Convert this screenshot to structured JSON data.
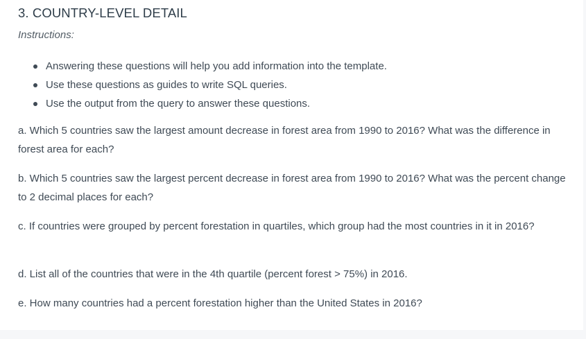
{
  "section": {
    "heading": "3. COUNTRY-LEVEL DETAIL",
    "instructions_label": "Instructions:",
    "bullets": [
      "Answering these questions will help you add information into the template.",
      "Use these questions as guides to write SQL queries.",
      "Use the output from the query to answer these questions."
    ],
    "questions": [
      "a. Which 5 countries saw the largest amount decrease in forest area from 1990 to 2016? What was the difference in forest area for each?",
      "b. Which 5 countries saw the largest percent decrease in forest area from 1990 to 2016? What was the percent change to 2 decimal places for each?",
      "c. If countries were grouped by percent forestation in quartiles, which group had the most countries in it in 2016?",
      "d. List all of the countries that were in the 4th quartile (percent forest > 75%) in 2016.",
      "e. How many countries had a percent forestation higher than the United States in 2016?"
    ]
  }
}
